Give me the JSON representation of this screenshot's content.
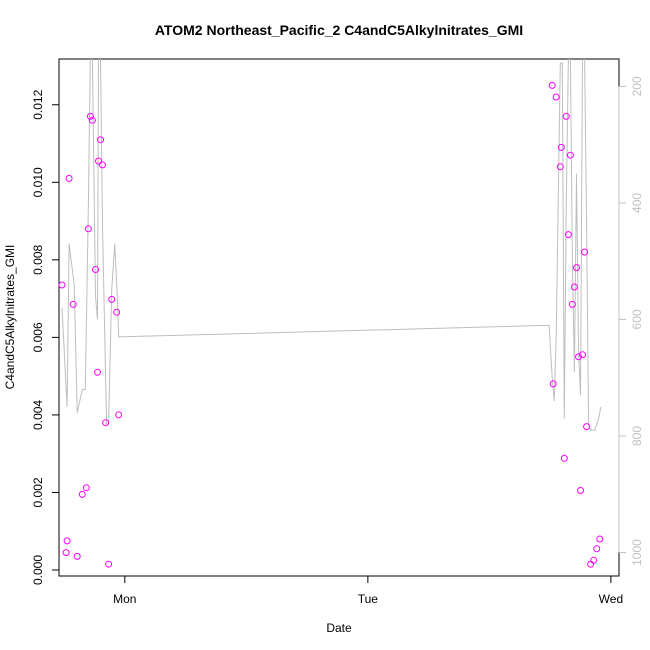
{
  "chart_data": {
    "type": "scatter",
    "title": "ATOM2 Northeast_Pacific_2 C4andC5Alkylnitrates_GMI",
    "xlabel": "Date",
    "ylabel": "C4andC5Alkylnitrates_GMI",
    "x_ticks": [
      {
        "value": 0,
        "label": "Mon"
      },
      {
        "value": 24,
        "label": "Tue"
      },
      {
        "value": 48,
        "label": "Wed"
      }
    ],
    "xlim": [
      -6.5,
      48.8
    ],
    "ylim": [
      0.0,
      0.013
    ],
    "y_ticks": [
      0.0,
      0.002,
      0.004,
      0.006,
      0.008,
      0.01,
      0.012
    ],
    "y_tick_labels": [
      "0.000",
      "0.002",
      "0.004",
      "0.006",
      "0.008",
      "0.010",
      "0.012"
    ],
    "y2_ticks": [
      200,
      400,
      600,
      800,
      1000
    ],
    "y2_lim": [
      1030,
      165
    ],
    "colors": {
      "points": "#ff00ff",
      "line": "#bebebe",
      "right_axis": "#c0c0c0"
    },
    "series": [
      {
        "values": [
          {
            "x": -6.2,
            "y": 0.00735
          },
          {
            "x": -5.8,
            "y": 0.00045
          },
          {
            "x": -5.7,
            "y": 0.00075
          },
          {
            "x": -5.5,
            "y": 0.0101
          },
          {
            "x": -5.1,
            "y": 0.00685
          },
          {
            "x": -4.7,
            "y": 0.00035
          },
          {
            "x": -4.2,
            "y": 0.00195
          },
          {
            "x": -3.8,
            "y": 0.00212
          },
          {
            "x": -3.6,
            "y": 0.0088
          },
          {
            "x": -3.4,
            "y": 0.0117
          },
          {
            "x": -3.2,
            "y": 0.0116
          },
          {
            "x": -2.9,
            "y": 0.00775
          },
          {
            "x": -2.7,
            "y": 0.0051
          },
          {
            "x": -2.6,
            "y": 0.01055
          },
          {
            "x": -2.4,
            "y": 0.0111
          },
          {
            "x": -2.2,
            "y": 0.01045
          },
          {
            "x": -1.9,
            "y": 0.0038
          },
          {
            "x": -1.6,
            "y": 0.00015
          },
          {
            "x": -1.3,
            "y": 0.00698
          },
          {
            "x": -0.8,
            "y": 0.00665
          },
          {
            "x": -0.6,
            "y": 0.004
          },
          {
            "x": 42.2,
            "y": 0.0125
          },
          {
            "x": 42.3,
            "y": 0.0048
          },
          {
            "x": 42.6,
            "y": 0.0122
          },
          {
            "x": 43.0,
            "y": 0.0104
          },
          {
            "x": 43.1,
            "y": 0.0109
          },
          {
            "x": 43.4,
            "y": 0.00288
          },
          {
            "x": 43.6,
            "y": 0.0117
          },
          {
            "x": 43.8,
            "y": 0.00865
          },
          {
            "x": 44.0,
            "y": 0.0107
          },
          {
            "x": 44.2,
            "y": 0.00685
          },
          {
            "x": 44.4,
            "y": 0.0073
          },
          {
            "x": 44.6,
            "y": 0.0078
          },
          {
            "x": 44.8,
            "y": 0.0055
          },
          {
            "x": 45.0,
            "y": 0.00205
          },
          {
            "x": 45.2,
            "y": 0.00555
          },
          {
            "x": 45.4,
            "y": 0.0082
          },
          {
            "x": 45.6,
            "y": 0.0037
          },
          {
            "x": 46.0,
            "y": 0.00015
          },
          {
            "x": 46.3,
            "y": 0.00025
          },
          {
            "x": 46.6,
            "y": 0.00055
          },
          {
            "x": 46.9,
            "y": 0.0008
          }
        ]
      },
      {
        "values": [
          {
            "x": -6.2,
            "y": 580
          },
          {
            "x": -5.7,
            "y": 750
          },
          {
            "x": -5.5,
            "y": 470
          },
          {
            "x": -5.0,
            "y": 540
          },
          {
            "x": -4.7,
            "y": 760
          },
          {
            "x": -4.2,
            "y": 720
          },
          {
            "x": -3.9,
            "y": 720
          },
          {
            "x": -3.6,
            "y": 400
          },
          {
            "x": -3.4,
            "y": 140
          },
          {
            "x": -3.2,
            "y": 150
          },
          {
            "x": -2.9,
            "y": 560
          },
          {
            "x": -2.7,
            "y": 600
          },
          {
            "x": -2.6,
            "y": 150
          },
          {
            "x": -2.4,
            "y": 150
          },
          {
            "x": -2.2,
            "y": 440
          },
          {
            "x": -1.8,
            "y": 780
          },
          {
            "x": -1.6,
            "y": 780
          },
          {
            "x": -1.3,
            "y": 550
          },
          {
            "x": -1.0,
            "y": 470
          },
          {
            "x": -0.8,
            "y": 540
          },
          {
            "x": -0.7,
            "y": 575
          },
          {
            "x": -0.6,
            "y": 630
          },
          {
            "x": 41.9,
            "y": 610
          },
          {
            "x": 42.2,
            "y": 700
          },
          {
            "x": 42.4,
            "y": 740
          },
          {
            "x": 42.6,
            "y": 630
          },
          {
            "x": 42.8,
            "y": 400
          },
          {
            "x": 43.0,
            "y": 160
          },
          {
            "x": 43.2,
            "y": 160
          },
          {
            "x": 43.4,
            "y": 770
          },
          {
            "x": 43.6,
            "y": 400
          },
          {
            "x": 43.8,
            "y": 150
          },
          {
            "x": 44.0,
            "y": 150
          },
          {
            "x": 44.2,
            "y": 500
          },
          {
            "x": 44.4,
            "y": 690
          },
          {
            "x": 44.6,
            "y": 350
          },
          {
            "x": 44.8,
            "y": 650
          },
          {
            "x": 45.0,
            "y": 730
          },
          {
            "x": 45.2,
            "y": 150
          },
          {
            "x": 45.4,
            "y": 150
          },
          {
            "x": 45.6,
            "y": 440
          },
          {
            "x": 45.8,
            "y": 780
          },
          {
            "x": 46.0,
            "y": 790
          },
          {
            "x": 46.4,
            "y": 790
          },
          {
            "x": 46.8,
            "y": 770
          },
          {
            "x": 47.0,
            "y": 750
          }
        ]
      }
    ]
  }
}
